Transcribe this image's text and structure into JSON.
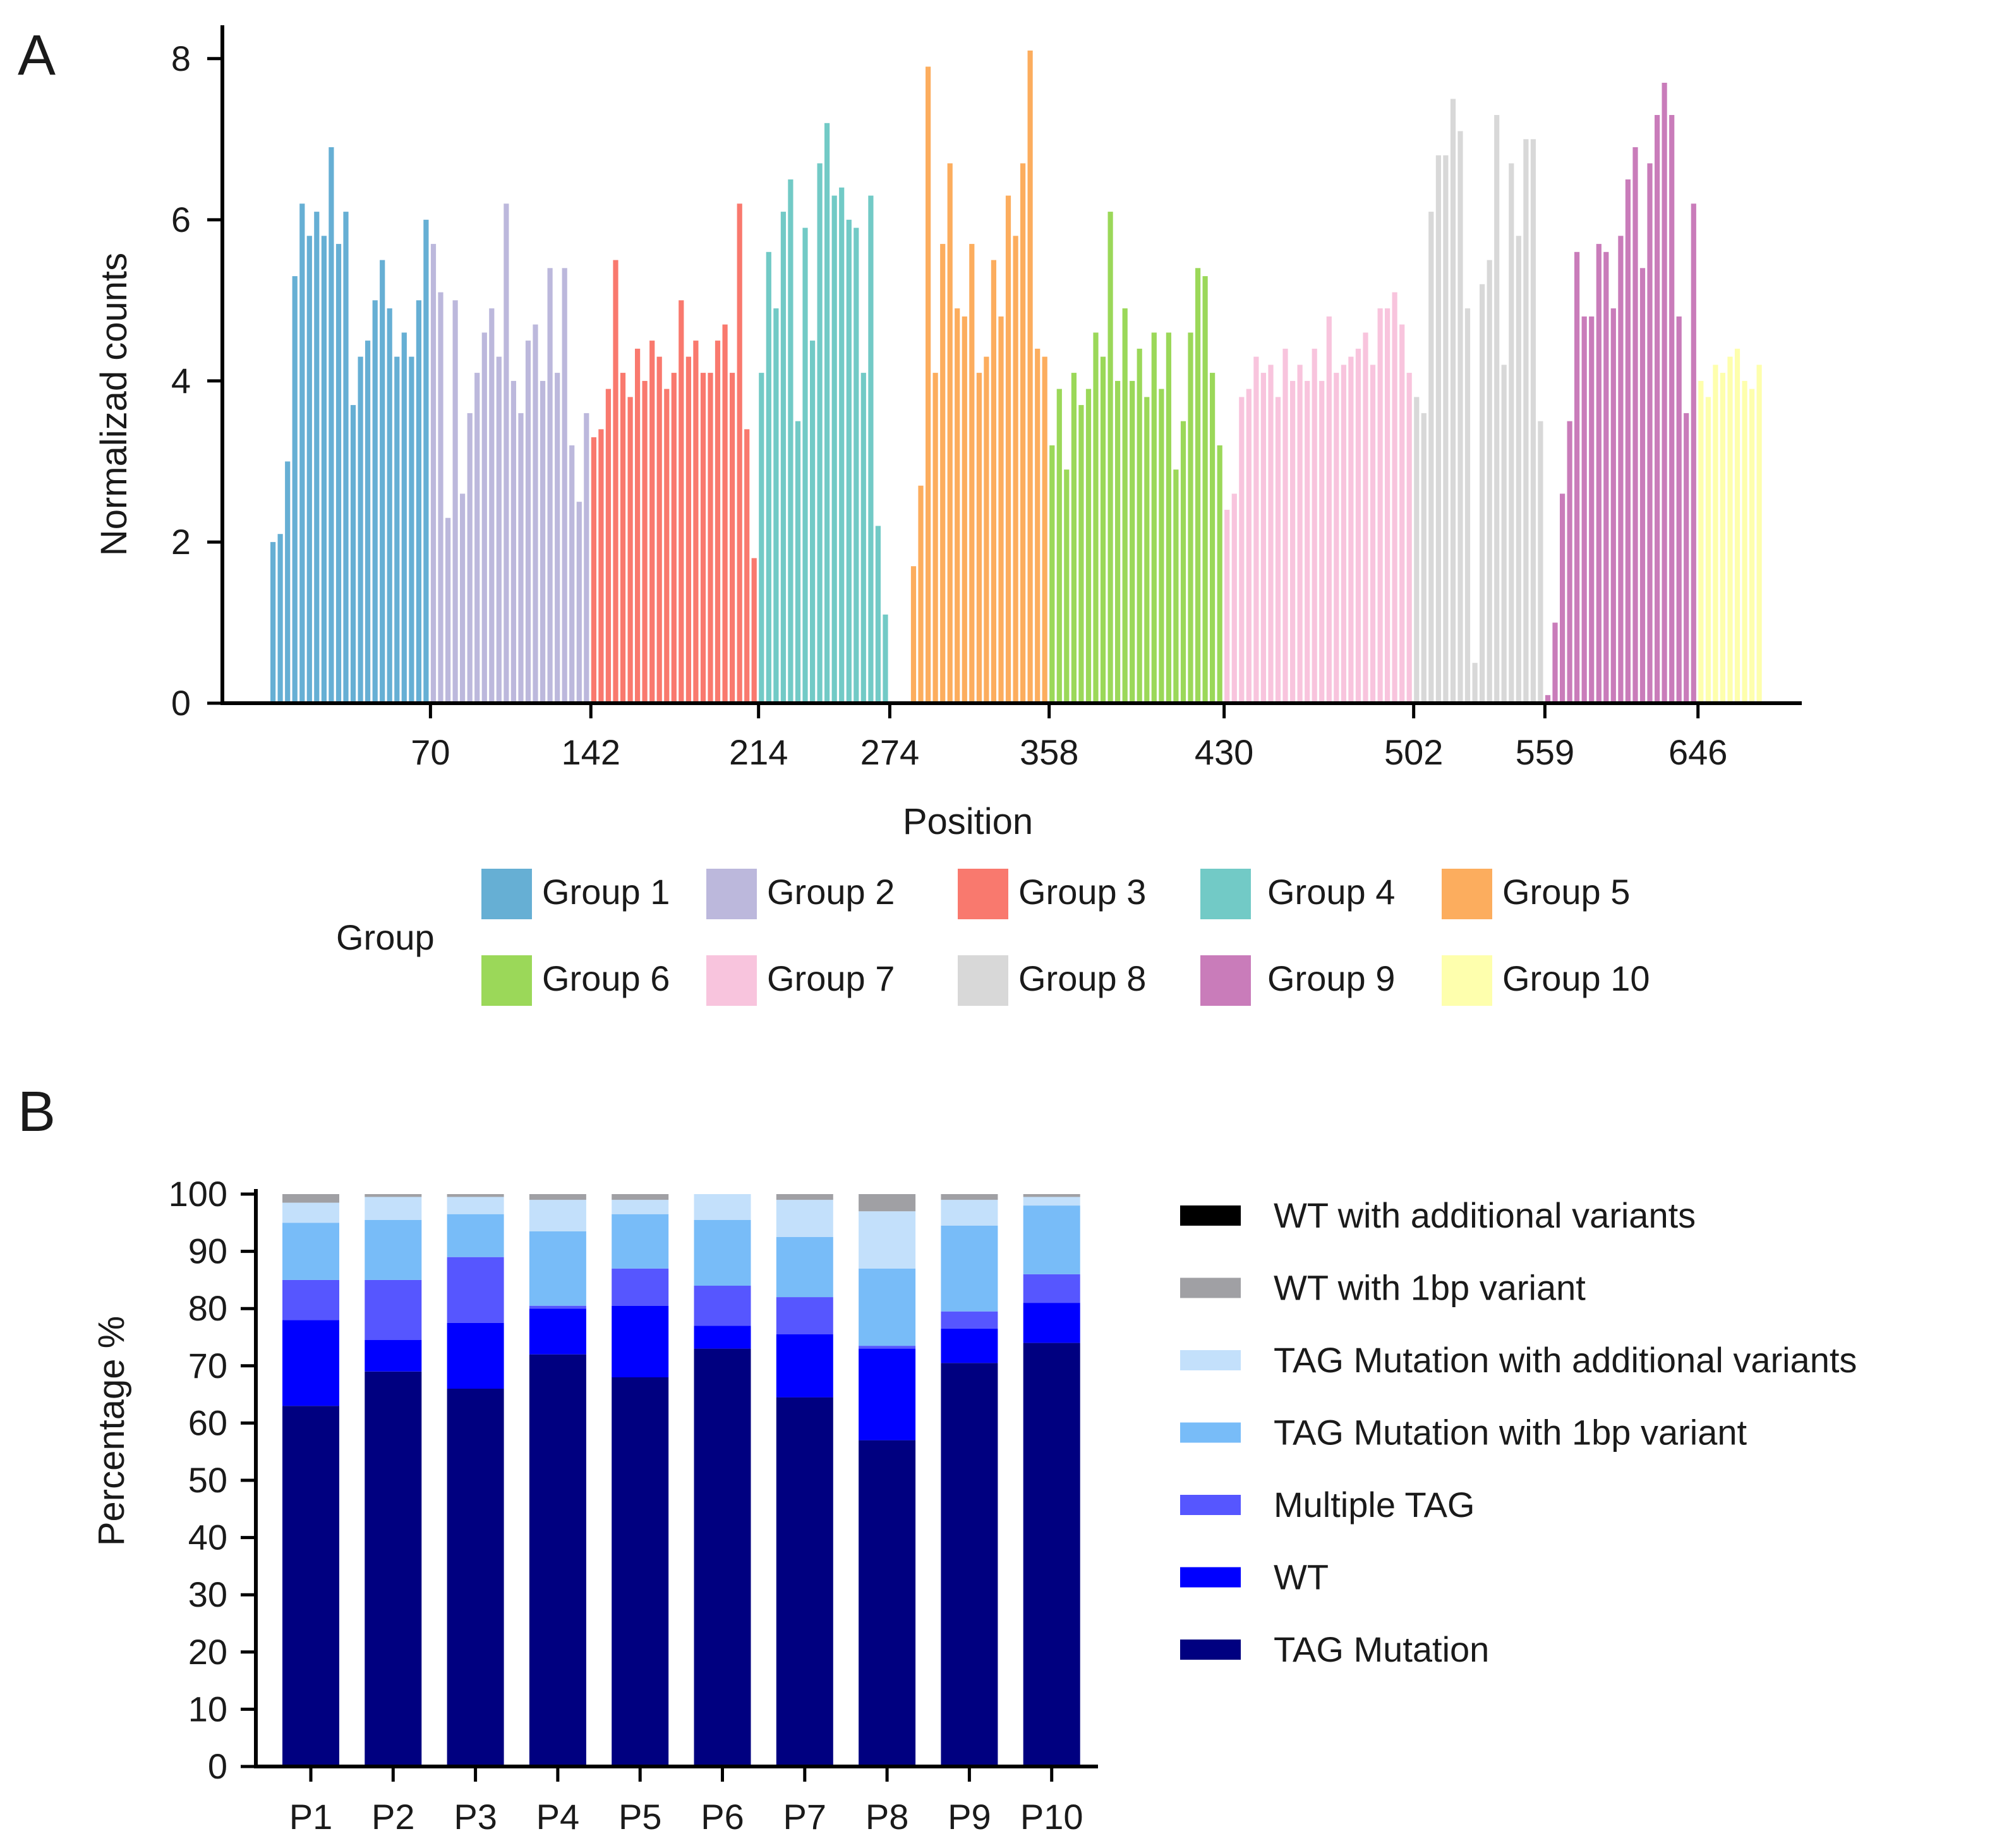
{
  "figure": {
    "panel_a_label": "A",
    "panel_b_label": "B"
  },
  "chart_data": [
    {
      "type": "bar",
      "panel": "A",
      "xlabel": "Position",
      "ylabel": "Normalizad counts",
      "ylim": [
        0,
        8.1
      ],
      "yticks": [
        0,
        2,
        4,
        6,
        8
      ],
      "xticks": [
        "70",
        "142",
        "214",
        "274",
        "358",
        "430",
        "502",
        "559",
        "646"
      ],
      "grid": false,
      "legend_title": "Group",
      "legend_placement": "bottom",
      "series": [
        {
          "name": "Group 1",
          "color": "#66afd4",
          "values": [
            2.0,
            2.1,
            3.0,
            5.3,
            6.2,
            5.8,
            6.1,
            5.8,
            6.9,
            5.7,
            6.1,
            3.7,
            4.3,
            4.5,
            5.0,
            5.5,
            4.9,
            4.3,
            4.6,
            4.3,
            5.0,
            6.0
          ]
        },
        {
          "name": "Group 2",
          "color": "#bcb8dc",
          "values": [
            5.7,
            5.1,
            2.3,
            5.0,
            2.6,
            3.6,
            4.1,
            4.6,
            4.9,
            4.3,
            6.2,
            4.0,
            3.6,
            4.5,
            4.7,
            4.0,
            5.4,
            4.1,
            5.4,
            3.2,
            2.5,
            3.6
          ]
        },
        {
          "name": "Group 3",
          "color": "#f9796e",
          "values": [
            3.3,
            3.4,
            3.9,
            5.5,
            4.1,
            3.8,
            4.4,
            4.0,
            4.5,
            4.3,
            3.9,
            4.1,
            5.0,
            4.3,
            4.5,
            4.1,
            4.1,
            4.5,
            4.7,
            4.1,
            6.2,
            3.4,
            1.8
          ]
        },
        {
          "name": "Group 4",
          "color": "#72cac6",
          "values": [
            4.1,
            5.6,
            4.9,
            6.1,
            6.5,
            3.5,
            5.9,
            4.5,
            6.7,
            7.2,
            6.3,
            6.4,
            6.0,
            5.9,
            4.1,
            6.3,
            2.2,
            1.1
          ]
        },
        {
          "name": "Group 5",
          "color": "#fcad5e",
          "values": [
            1.7,
            2.7,
            7.9,
            4.1,
            5.7,
            6.7,
            4.9,
            4.8,
            5.7,
            4.1,
            4.3,
            5.5,
            4.8,
            6.3,
            5.8,
            6.7,
            8.1,
            4.4,
            4.3
          ]
        },
        {
          "name": "Group 6",
          "color": "#9bd859",
          "values": [
            3.2,
            3.9,
            2.9,
            4.1,
            3.7,
            3.9,
            4.6,
            4.3,
            6.1,
            4.0,
            4.9,
            4.0,
            4.4,
            3.8,
            4.6,
            3.9,
            4.6,
            2.9,
            3.5,
            4.6,
            5.4,
            5.3,
            4.1,
            3.2
          ]
        },
        {
          "name": "Group 7",
          "color": "#f8c4dd",
          "values": [
            2.4,
            2.6,
            3.8,
            3.9,
            4.3,
            4.1,
            4.2,
            3.8,
            4.4,
            4.0,
            4.2,
            4.0,
            4.4,
            4.0,
            4.8,
            4.1,
            4.2,
            4.3,
            4.4,
            4.6,
            4.2,
            4.9,
            4.9,
            5.1,
            4.7,
            4.1
          ]
        },
        {
          "name": "Group 8",
          "color": "#d8d8d8",
          "values": [
            3.8,
            3.6,
            6.1,
            6.8,
            6.8,
            7.5,
            7.1,
            4.9,
            0.5,
            5.2,
            5.5,
            7.3,
            4.2,
            6.7,
            5.8,
            7.0,
            7.0,
            3.5
          ]
        },
        {
          "name": "Group 9",
          "color": "#c97cba",
          "values": [
            0.1,
            1.0,
            2.6,
            3.5,
            5.6,
            4.8,
            4.8,
            5.7,
            5.6,
            4.9,
            5.8,
            6.5,
            6.9,
            5.4,
            6.7,
            7.3,
            7.7,
            7.3,
            4.8,
            3.6,
            6.2
          ]
        },
        {
          "name": "Group 10",
          "color": "#feffad",
          "values": [
            4.0,
            3.8,
            4.2,
            4.1,
            4.3,
            4.4,
            4.0,
            3.9,
            4.2
          ]
        }
      ]
    },
    {
      "type": "bar",
      "stacked": true,
      "panel": "B",
      "xlabel": "",
      "ylabel": "Percentage %",
      "ylim": [
        0,
        100
      ],
      "yticks": [
        0,
        10,
        20,
        30,
        40,
        50,
        60,
        70,
        80,
        90,
        100
      ],
      "categories": [
        "P1",
        "P2",
        "P3",
        "P4",
        "P5",
        "P6",
        "P7",
        "P8",
        "P9",
        "P10"
      ],
      "grid": false,
      "legend_placement": "right",
      "series": [
        {
          "name": "TAG Mutation",
          "color": "#000080",
          "values": [
            63,
            69,
            66,
            72,
            68,
            73,
            64.5,
            57,
            70.5,
            74
          ]
        },
        {
          "name": "WT",
          "color": "#0000ff",
          "values": [
            15,
            5.5,
            11.5,
            8,
            12.5,
            4,
            11,
            16,
            6,
            7
          ]
        },
        {
          "name": "Multiple TAG",
          "color": "#5656ff",
          "values": [
            7,
            10.5,
            11.5,
            0.5,
            6.5,
            7,
            6.5,
            0.5,
            3,
            5
          ]
        },
        {
          "name": "TAG Mutation with 1bp variant",
          "color": "#78bcf8",
          "values": [
            10,
            10.5,
            7.5,
            13,
            9.5,
            11.5,
            10.5,
            13.5,
            15,
            12
          ]
        },
        {
          "name": "TAG Mutation with additional variants",
          "color": "#c3e0fb",
          "values": [
            3.5,
            4,
            3,
            5.5,
            2.5,
            4.5,
            6.5,
            10,
            4.5,
            1.5
          ]
        },
        {
          "name": "WT with 1bp variant",
          "color": "#a0a0a4",
          "values": [
            1.5,
            0.5,
            0.5,
            1,
            1,
            0.5,
            1,
            3,
            1,
            0.5
          ]
        },
        {
          "name": "WT with additional variants",
          "color": "#000000",
          "values": [
            0,
            0,
            0,
            0,
            0,
            0,
            0,
            0,
            0,
            0
          ]
        }
      ],
      "legend_order": [
        "WT with additional variants",
        "WT with 1bp variant",
        "TAG Mutation with additional variants",
        "TAG Mutation with 1bp variant",
        "Multiple TAG",
        "WT",
        "TAG Mutation"
      ]
    }
  ]
}
